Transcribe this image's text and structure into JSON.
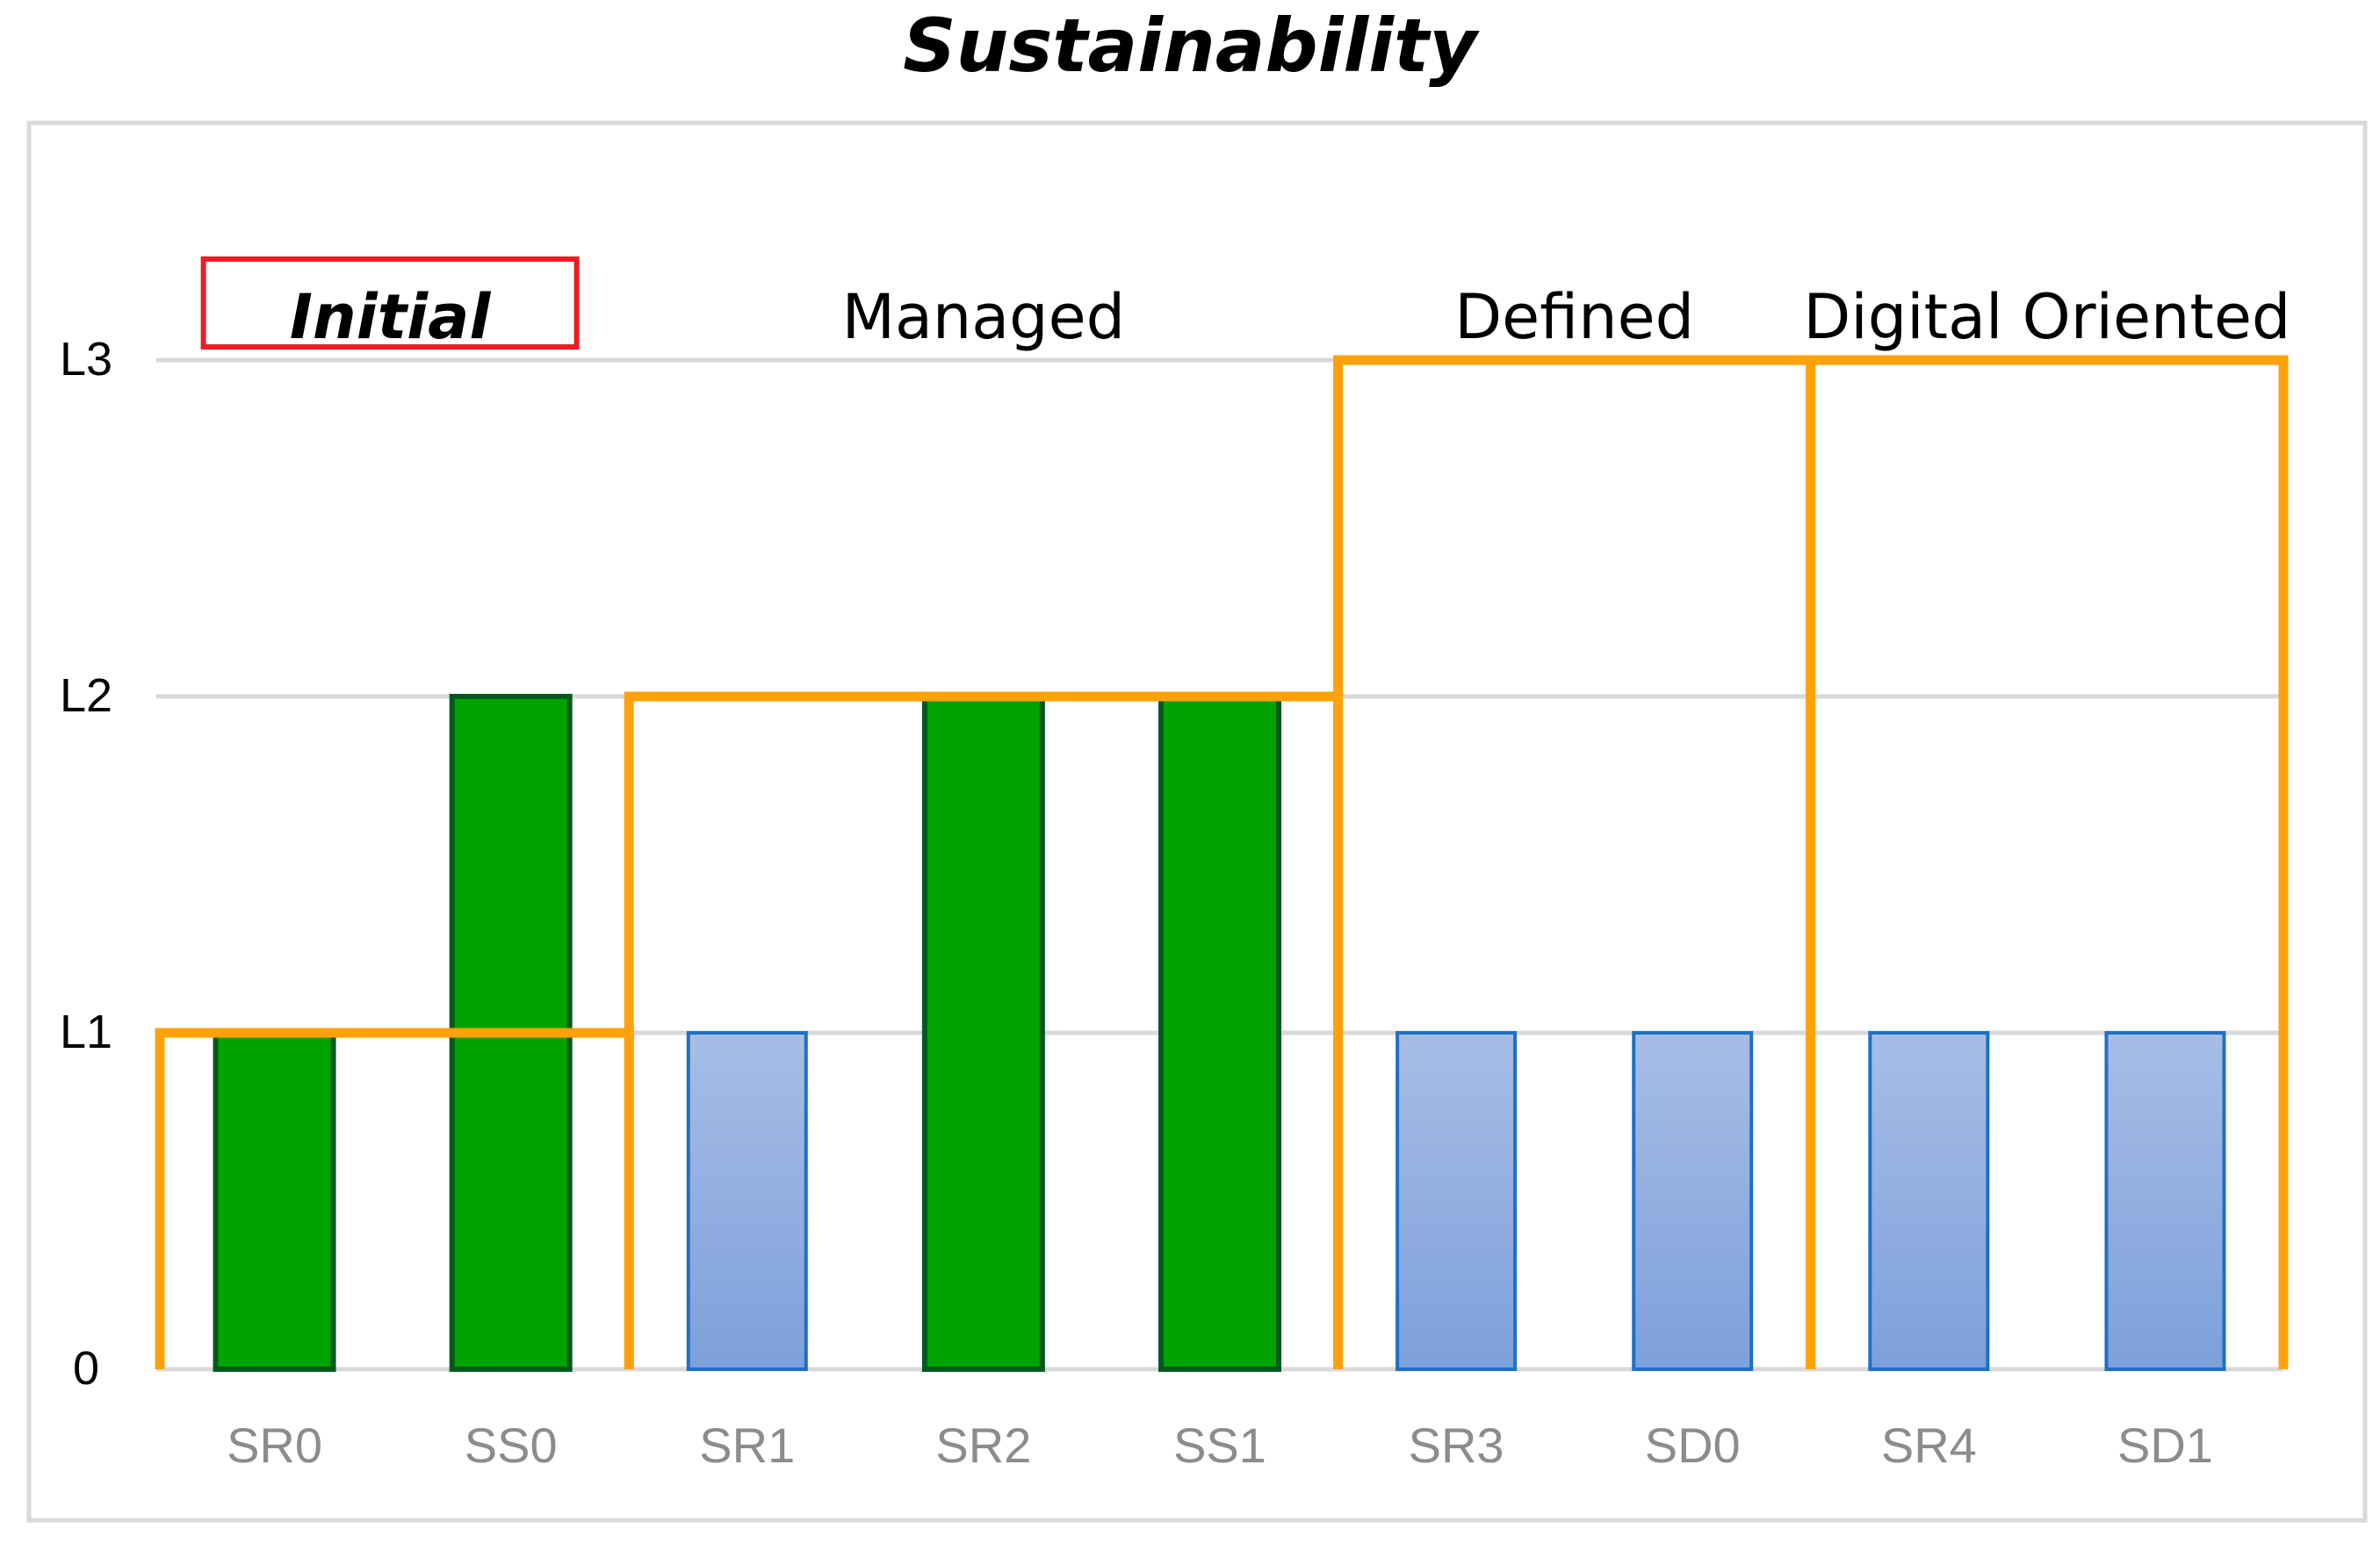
{
  "chart_data": {
    "type": "bar",
    "title": "Sustainability",
    "categories": [
      "SR0",
      "SS0",
      "SR1",
      "SR2",
      "SS1",
      "SR3",
      "SD0",
      "SR4",
      "SD1"
    ],
    "values": [
      1,
      2,
      1,
      2,
      2,
      1,
      1,
      1,
      1
    ],
    "achieved": [
      true,
      true,
      false,
      true,
      true,
      false,
      false,
      false,
      false
    ],
    "yticks": [
      {
        "value": 0,
        "label": "0"
      },
      {
        "value": 1,
        "label": "L1"
      },
      {
        "value": 2,
        "label": "L2"
      },
      {
        "value": 3,
        "label": "L3"
      }
    ],
    "ylim": [
      0,
      3
    ],
    "xlabel": "",
    "ylabel": "",
    "grid": true,
    "colors": {
      "achieved_fill": "#00a300",
      "achieved_edge": "#005a1e",
      "pending_fill_top": "#a7bde6",
      "pending_fill_bottom": "#7da0db",
      "pending_edge": "#1f6fc6",
      "level_outline": "#ffa10a",
      "highlight_box": "#ec1c24",
      "grid": "#d9d9d9",
      "frame": "#d9d9d9"
    },
    "levels": [
      {
        "name": "Initial",
        "categories": [
          "SR0",
          "SS0"
        ],
        "required": 1,
        "highlighted": true
      },
      {
        "name": "Managed",
        "categories": [
          "SR1",
          "SR2",
          "SS1"
        ],
        "required": 2,
        "highlighted": false
      },
      {
        "name": "Defined",
        "categories": [
          "SR3",
          "SD0"
        ],
        "required": 3,
        "highlighted": false
      },
      {
        "name": "Digital Oriented",
        "categories": [
          "SR4",
          "SD1"
        ],
        "required": 3,
        "highlighted": false
      }
    ]
  }
}
